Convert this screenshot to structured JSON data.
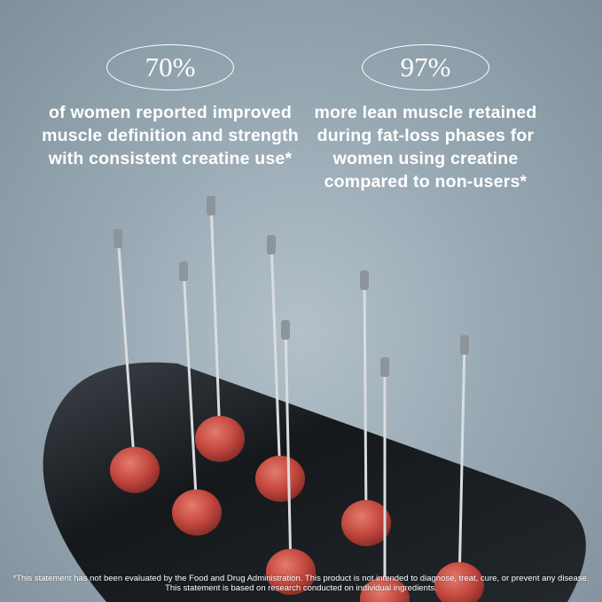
{
  "stats": [
    {
      "value": "70%",
      "description": "of women reported improved muscle definition and strength with consistent creatine use*"
    },
    {
      "value": "97%",
      "description": "more lean muscle retained during fat-loss phases for women using creatine compared to non-users*"
    }
  ],
  "disclaimer": {
    "line1": "*This statement has not been evaluated by the Food and Drug Administration. This product is not intended to diagnose, treat, cure, or prevent any disease.",
    "line2": "This statement is based on research conducted on individual ingredients."
  },
  "colors": {
    "background": "#9aaab5",
    "tray": "#1b1f23",
    "gummy": "#c8524a",
    "text": "#ffffff"
  }
}
